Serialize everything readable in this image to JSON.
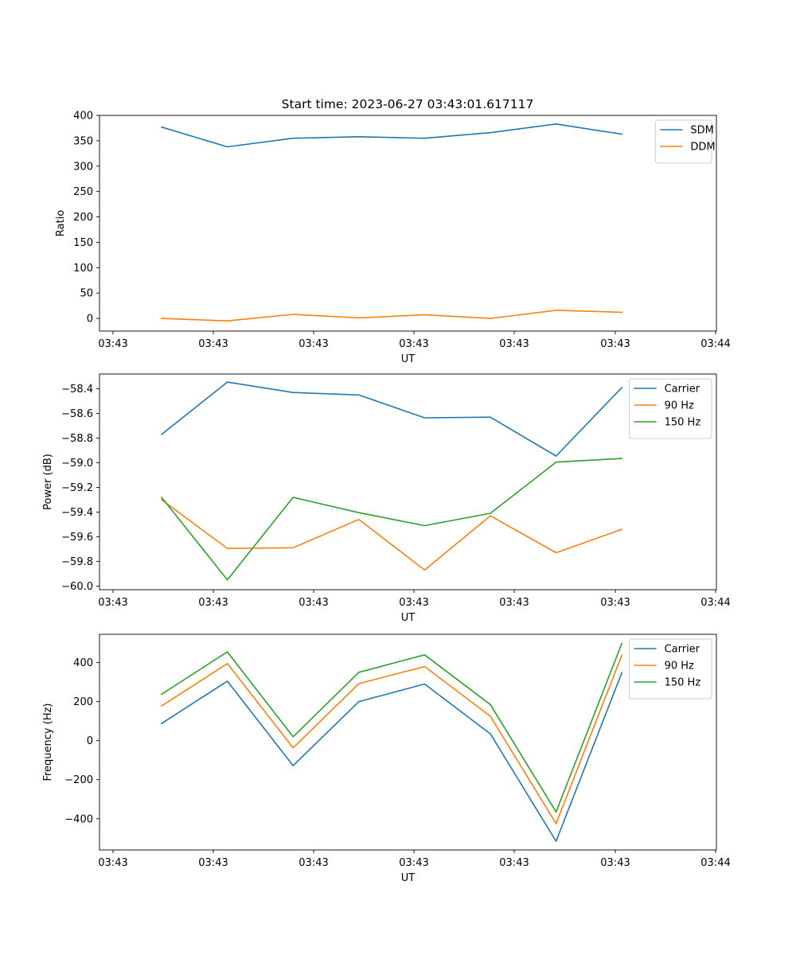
{
  "title": "Start time: 2023-06-27 03:43:01.617117",
  "chart_data": [
    {
      "type": "line",
      "xlabel": "UT",
      "ylabel": "Ratio",
      "x_tick_labels": [
        "03:43",
        "03:43",
        "03:43",
        "03:43",
        "03:43",
        "03:43",
        "03:44"
      ],
      "yticks": [
        0,
        50,
        100,
        150,
        200,
        250,
        300,
        350,
        400
      ],
      "ylim": [
        -25,
        400
      ],
      "grid": false,
      "legend_position": "top-right",
      "series": [
        {
          "name": "SDM",
          "color": "#1f77b4",
          "values": [
            377,
            338,
            355,
            358,
            355,
            366,
            383,
            363
          ]
        },
        {
          "name": "DDM",
          "color": "#ff7f0e",
          "values": [
            0,
            -5,
            8,
            1,
            7,
            0,
            16,
            12
          ]
        }
      ]
    },
    {
      "type": "line",
      "xlabel": "UT",
      "ylabel": "Power (dB)",
      "x_tick_labels": [
        "03:43",
        "03:43",
        "03:43",
        "03:43",
        "03:43",
        "03:43",
        "03:44"
      ],
      "yticks": [
        -60.0,
        -59.8,
        -59.6,
        -59.4,
        -59.2,
        -59.0,
        -58.8,
        -58.6,
        -58.4
      ],
      "ytick_labels": [
        "−60.0",
        "−59.8",
        "−59.6",
        "−59.4",
        "−59.2",
        "−59.0",
        "−58.8",
        "−58.6",
        "−58.4"
      ],
      "ylim": [
        -60.03,
        -58.28
      ],
      "grid": false,
      "legend_position": "top-right",
      "series": [
        {
          "name": "Carrier",
          "color": "#1f77b4",
          "values": [
            -58.77,
            -58.345,
            -58.43,
            -58.45,
            -58.635,
            -58.63,
            -58.945,
            -58.39
          ]
        },
        {
          "name": "90 Hz",
          "color": "#ff7f0e",
          "values": [
            -59.3,
            -59.695,
            -59.69,
            -59.46,
            -59.87,
            -59.43,
            -59.73,
            -59.54
          ]
        },
        {
          "name": "150 Hz",
          "color": "#2ca02c",
          "values": [
            -59.28,
            -59.95,
            -59.28,
            -59.405,
            -59.51,
            -59.41,
            -58.995,
            -58.965
          ]
        }
      ]
    },
    {
      "type": "line",
      "xlabel": "UT",
      "ylabel": "Frequency (Hz)",
      "x_tick_labels": [
        "03:43",
        "03:43",
        "03:43",
        "03:43",
        "03:43",
        "03:43",
        "03:44"
      ],
      "yticks": [
        -400,
        -200,
        0,
        200,
        400
      ],
      "ytick_labels": [
        "−400",
        "−200",
        "0",
        "200",
        "400"
      ],
      "ylim": [
        -560,
        545
      ],
      "grid": false,
      "legend_position": "top-right",
      "series": [
        {
          "name": "Carrier",
          "color": "#1f77b4",
          "values": [
            88,
            305,
            -128,
            200,
            290,
            35,
            -515,
            348
          ]
        },
        {
          "name": "90 Hz",
          "color": "#ff7f0e",
          "values": [
            178,
            395,
            -37,
            292,
            380,
            125,
            -425,
            438
          ]
        },
        {
          "name": "150 Hz",
          "color": "#2ca02c",
          "values": [
            238,
            455,
            20,
            350,
            440,
            185,
            -365,
            498
          ]
        }
      ]
    }
  ]
}
